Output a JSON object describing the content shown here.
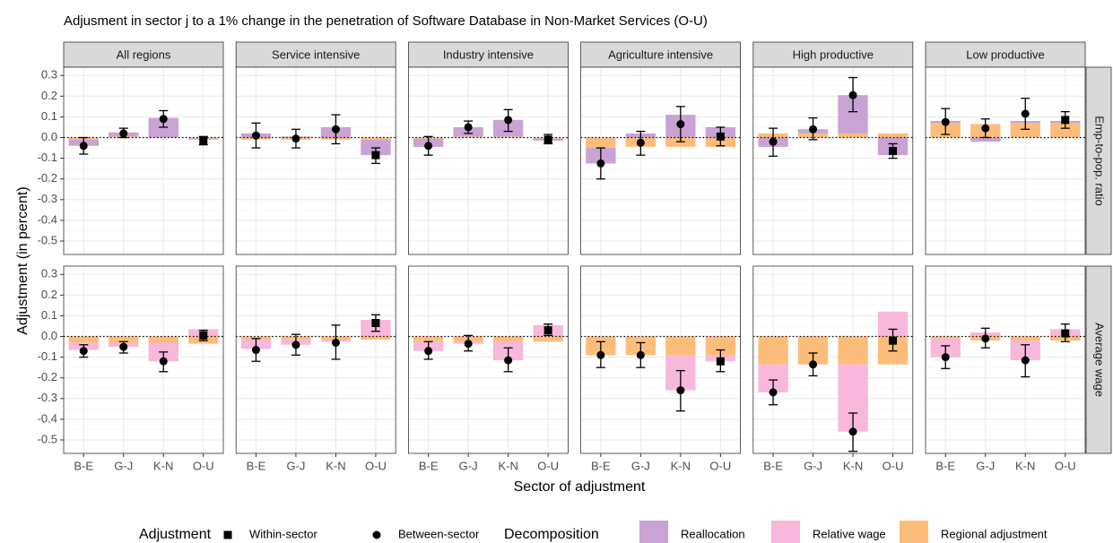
{
  "chart_data": {
    "type": "bar",
    "title": "Adjusment in sector j to a 1% change in the penetration of Software Database in Non-Market Services (O-U)",
    "x_label": "Sector of adjustment",
    "y_label": "Adjustment (in percent)",
    "columns": [
      "All regions",
      "Service intensive",
      "Industry intensive",
      "Agriculture intensive",
      "High productive",
      "Low productive"
    ],
    "rows": [
      "Emp-to-pop. ratio",
      "Average wage"
    ],
    "categories": [
      "B-E",
      "G-J",
      "K-N",
      "O-U"
    ],
    "ylim": [
      -0.565,
      0.34
    ],
    "yticks": [
      0.3,
      0.2,
      0.1,
      {
        "value": 0,
        "label": "0.0"
      },
      -0.1,
      -0.2,
      -0.3,
      -0.4,
      -0.5
    ],
    "grid": true,
    "adjustment_title": "Adjustment",
    "adjustment": [
      {
        "name": "Within-sector",
        "shape": "square"
      },
      {
        "name": "Between-sector",
        "shape": "circle"
      }
    ],
    "category_adjustment": [
      1,
      1,
      1,
      0
    ],
    "decomposition_title": "Decomposition",
    "series": [
      {
        "name": "Reallocation",
        "color": "#c9a3d4"
      },
      {
        "name": "Relative wage",
        "color": "#f7b8db"
      },
      {
        "name": "Regional adjustment",
        "color": "#fdbd7a"
      }
    ],
    "legend": "bottom",
    "panels": [
      [
        {
          "estimate": [
            -0.04,
            0.02,
            0.09,
            -0.015
          ],
          "lower": [
            -0.08,
            0.0,
            0.05,
            -0.035
          ],
          "upper": [
            0.0,
            0.045,
            0.13,
            0.005
          ],
          "decomposition": [
            [
              -0.03,
              0.02,
              0.095,
              -0.005
            ],
            [
              null,
              null,
              null,
              null
            ],
            [
              -0.01,
              0.005,
              0,
              -0.005
            ]
          ]
        },
        {
          "estimate": [
            0.01,
            -0.005,
            0.04,
            -0.085
          ],
          "lower": [
            -0.05,
            -0.05,
            -0.03,
            -0.125
          ],
          "upper": [
            0.07,
            0.04,
            0.11,
            -0.05
          ],
          "decomposition": [
            [
              0.02,
              0.005,
              0.05,
              -0.075
            ],
            [
              null,
              null,
              null,
              null
            ],
            [
              -0.01,
              -0.01,
              -0.01,
              -0.01
            ]
          ]
        },
        {
          "estimate": [
            -0.04,
            0.05,
            0.085,
            -0.01
          ],
          "lower": [
            -0.085,
            0.02,
            0.03,
            -0.03
          ],
          "upper": [
            0.005,
            0.08,
            0.135,
            0.015
          ],
          "decomposition": [
            [
              -0.04,
              0.045,
              0.08,
              -0.01
            ],
            [
              null,
              null,
              null,
              null
            ],
            [
              -0.005,
              0.005,
              0.005,
              -0.005
            ]
          ]
        },
        {
          "estimate": [
            -0.125,
            -0.025,
            0.065,
            0.005
          ],
          "lower": [
            -0.2,
            -0.085,
            -0.02,
            -0.04
          ],
          "upper": [
            -0.05,
            0.03,
            0.15,
            0.05
          ],
          "decomposition": [
            [
              -0.075,
              0.02,
              0.11,
              0.05
            ],
            [
              null,
              null,
              null,
              null
            ],
            [
              -0.05,
              -0.045,
              -0.045,
              -0.045
            ]
          ]
        },
        {
          "estimate": [
            -0.02,
            0.04,
            0.205,
            -0.065
          ],
          "lower": [
            -0.09,
            -0.01,
            0.125,
            -0.1
          ],
          "upper": [
            0.045,
            0.095,
            0.29,
            -0.03
          ],
          "decomposition": [
            [
              -0.045,
              0.02,
              0.185,
              -0.085
            ],
            [
              null,
              null,
              null,
              null
            ],
            [
              0.02,
              0.02,
              0.02,
              0.02
            ]
          ]
        },
        {
          "estimate": [
            0.075,
            0.045,
            0.115,
            0.085
          ],
          "lower": [
            0.015,
            0.0,
            0.04,
            0.045
          ],
          "upper": [
            0.14,
            0.09,
            0.19,
            0.125
          ],
          "decomposition": [
            [
              0.01,
              -0.02,
              0.01,
              0.01
            ],
            [
              null,
              null,
              null,
              null
            ],
            [
              0.07,
              0.065,
              0.07,
              0.07
            ]
          ]
        }
      ],
      [
        {
          "estimate": [
            -0.07,
            -0.05,
            -0.12,
            0.005
          ],
          "lower": [
            -0.1,
            -0.08,
            -0.17,
            -0.02
          ],
          "upper": [
            -0.04,
            -0.025,
            -0.075,
            0.03
          ],
          "decomposition": [
            [
              null,
              null,
              null,
              null
            ],
            [
              -0.035,
              -0.02,
              -0.09,
              0.035
            ],
            [
              -0.03,
              -0.03,
              -0.03,
              -0.035
            ]
          ]
        },
        {
          "estimate": [
            -0.065,
            -0.04,
            -0.03,
            0.065
          ],
          "lower": [
            -0.12,
            -0.09,
            -0.11,
            0.025
          ],
          "upper": [
            -0.01,
            0.01,
            0.055,
            0.105
          ],
          "decomposition": [
            [
              null,
              null,
              null,
              null
            ],
            [
              -0.045,
              -0.025,
              -0.01,
              0.08
            ],
            [
              -0.015,
              -0.015,
              -0.015,
              -0.015
            ]
          ]
        },
        {
          "estimate": [
            -0.07,
            -0.035,
            -0.115,
            0.03
          ],
          "lower": [
            -0.11,
            -0.07,
            -0.17,
            0.005
          ],
          "upper": [
            -0.025,
            0.005,
            -0.055,
            0.06
          ],
          "decomposition": [
            [
              null,
              null,
              null,
              null
            ],
            [
              -0.045,
              -0.01,
              -0.09,
              0.055
            ],
            [
              -0.025,
              -0.025,
              -0.025,
              -0.025
            ]
          ]
        },
        {
          "estimate": [
            -0.09,
            -0.09,
            -0.26,
            -0.12
          ],
          "lower": [
            -0.15,
            -0.15,
            -0.36,
            -0.17
          ],
          "upper": [
            -0.025,
            -0.03,
            -0.165,
            -0.065
          ],
          "decomposition": [
            [
              null,
              null,
              null,
              null
            ],
            [
              0,
              0,
              -0.17,
              -0.03
            ],
            [
              -0.09,
              -0.09,
              -0.09,
              -0.09
            ]
          ]
        },
        {
          "estimate": [
            -0.27,
            -0.135,
            -0.46,
            -0.02
          ],
          "lower": [
            -0.33,
            -0.19,
            -0.555,
            -0.07
          ],
          "upper": [
            -0.21,
            -0.08,
            -0.37,
            0.035
          ],
          "decomposition": [
            [
              null,
              null,
              null,
              null
            ],
            [
              -0.135,
              0,
              -0.325,
              0.12
            ],
            [
              -0.135,
              -0.135,
              -0.135,
              -0.135
            ]
          ]
        },
        {
          "estimate": [
            -0.1,
            -0.01,
            -0.115,
            0.015
          ],
          "lower": [
            -0.155,
            -0.055,
            -0.195,
            -0.025
          ],
          "upper": [
            -0.045,
            0.04,
            -0.04,
            0.06
          ],
          "decomposition": [
            [
              null,
              null,
              null,
              null
            ],
            [
              -0.09,
              0.02,
              -0.095,
              0.035
            ],
            [
              -0.01,
              -0.02,
              -0.02,
              -0.02
            ]
          ]
        }
      ]
    ]
  }
}
